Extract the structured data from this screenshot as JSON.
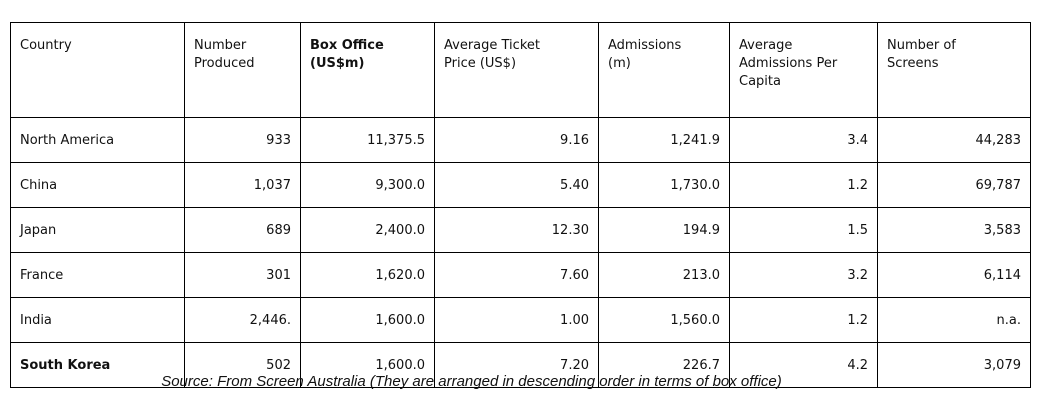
{
  "table": {
    "headers": [
      "Country",
      "Number\nProduced",
      "Box Office\n(US$m)",
      "Average Ticket\nPrice (US$)",
      "Admissions\n(m)",
      "Average\nAdmissions Per\nCapita",
      "Number of\nScreens"
    ],
    "bold_headers": [
      2
    ],
    "rows": [
      {
        "cells": [
          "North America",
          "933",
          "11,375.5",
          "9.16",
          "1,241.9",
          "3.4",
          "44,283"
        ],
        "bold": false
      },
      {
        "cells": [
          "China",
          "1,037",
          "9,300.0",
          "5.40",
          "1,730.0",
          "1.2",
          "69,787"
        ],
        "bold": false
      },
      {
        "cells": [
          "Japan",
          "689",
          "2,400.0",
          "12.30",
          "194.9",
          "1.5",
          "3,583"
        ],
        "bold": false
      },
      {
        "cells": [
          "France",
          "301",
          "1,620.0",
          "7.60",
          "213.0",
          "3.2",
          "6,114"
        ],
        "bold": false
      },
      {
        "cells": [
          "India",
          "2,446.",
          "1,600.0",
          "1.00",
          "1,560.0",
          "1.2",
          "n.a."
        ],
        "bold": false
      },
      {
        "cells": [
          "South Korea",
          "502",
          "1,600.0",
          "7.20",
          "226.7",
          "4.2",
          "3,079"
        ],
        "bold": true
      }
    ]
  },
  "source_caption": "Source: From Screen Australia (They are arranged in descending order in terms of box office)"
}
